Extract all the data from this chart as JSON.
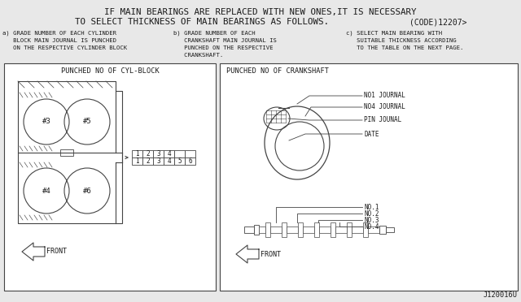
{
  "bg_color": "#e8e8e8",
  "title_line1": "IF MAIN BEARINGS ARE REPLACED WITH NEW ONES,IT IS NECESSARY",
  "title_line2": "TO SELECT THICKNESS OF MAIN BEARINGS AS FOLLOWS.",
  "code_text": "(CODE)12207>",
  "subtitle_a": "a) GRADE NUMBER OF EACH CYLINDER\n   BLOCK MAIN JOURNAL IS PUNCHED\n   ON THE RESPECTIVE CYLINDER BLOCK",
  "subtitle_b": "b) GRADE NUMBER OF EACH\n   CRANKSHAFT MAIN JOURNAL IS\n   PUNCHED ON THE RESPECTIVE\n   CRANKSHAFT.",
  "subtitle_c": "c) SELECT MAIN BEARING WITH\n   SUITABLE THICKNESS ACCORDING\n   TO THE TABLE ON THE NEXT PAGE.",
  "left_box_title": "PUNCHED NO OF CYL-BLOCK",
  "right_box_title": "PUNCHED NO OF CRANKSHAFT",
  "right_upper_labels": [
    "NO1 JOURNAL",
    "NO4 JOURNAL",
    "PIN JOUNAL",
    "DATE"
  ],
  "right_lower_labels": [
    "NO.1",
    "NO.2",
    "NO.3",
    "NO.4"
  ],
  "grid_numbers_row1": [
    "1",
    "2",
    "3",
    "4",
    "",
    ""
  ],
  "grid_numbers_row2": [
    "1",
    "2",
    "3",
    "4",
    "5",
    "6"
  ],
  "footer_code": "J120016U",
  "font_color": "#1a1a1a",
  "box_facecolor": "#ffffff",
  "line_color": "#444444"
}
